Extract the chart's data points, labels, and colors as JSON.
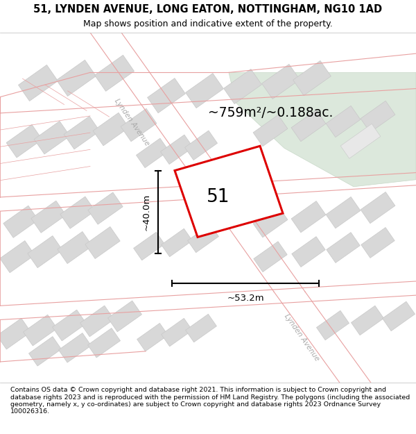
{
  "title_line1": "51, LYNDEN AVENUE, LONG EATON, NOTTINGHAM, NG10 1AD",
  "title_line2": "Map shows position and indicative extent of the property.",
  "area_label": "~759m²/~0.188ac.",
  "width_label": "~53.2m",
  "height_label": "~40.0m",
  "property_number": "51",
  "footer_text": "Contains OS data © Crown copyright and database right 2021. This information is subject to Crown copyright and database rights 2023 and is reproduced with the permission of HM Land Registry. The polygons (including the associated geometry, namely x, y co-ordinates) are subject to Crown copyright and database rights 2023 Ordnance Survey 100026316.",
  "bg_color": "#ebebeb",
  "road_line_color": "#e8a0a0",
  "property_outline_color": "#dd0000",
  "property_fill": "#ffffff",
  "building_face_color": "#d8d8d8",
  "building_edge_color": "#c8c8c8",
  "green_area_color": "#dce8dc",
  "green_edge_color": "#c8d8c8",
  "title_fontsize": 10.5,
  "subtitle_fontsize": 9.0,
  "footer_fontsize": 6.8
}
